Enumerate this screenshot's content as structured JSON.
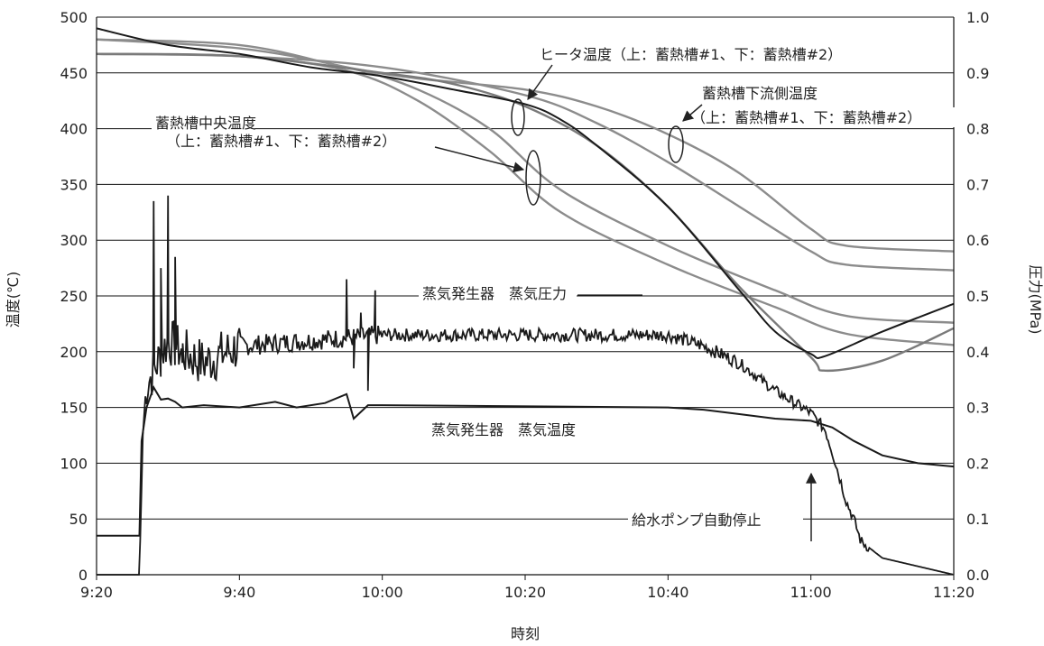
{
  "chart_data": {
    "type": "line",
    "xlabel": "時刻",
    "ylabel_left": "温度(℃)",
    "ylabel_right": "圧力(MPa)",
    "x_range": [
      "9:20",
      "11:20"
    ],
    "x_ticks": [
      "9:20",
      "9:40",
      "10:00",
      "10:20",
      "10:40",
      "11:00",
      "11:20"
    ],
    "ylim_left": [
      0,
      500
    ],
    "y_ticks_left": [
      "0",
      "50",
      "100",
      "150",
      "200",
      "250",
      "300",
      "350",
      "400",
      "450",
      "500"
    ],
    "ylim_right": [
      0.0,
      1.0
    ],
    "y_ticks_right": [
      "0.0",
      "0.1",
      "0.2",
      "0.3",
      "0.4",
      "0.5",
      "0.6",
      "0.7",
      "0.8",
      "0.9",
      "1.0"
    ],
    "grid": "horizontal",
    "legend": "none",
    "annotations": {
      "heater": "ヒータ温度（上：蓄熱槽#1、下：蓄熱槽#2）",
      "center_line1": "蓄熱槽中央温度",
      "center_line2": "（上：蓄熱槽#1、下：蓄熱槽#2）",
      "down_line1": "蓄熱槽下流側温度",
      "down_line2": "（上：蓄熱槽#1、下：蓄熱槽#2）",
      "sg_pressure": "蒸気発生器　蒸気圧力",
      "sg_temp": "蒸気発生器　蒸気温度",
      "pump_stop": "給水ポンプ自動停止"
    },
    "series": [
      {
        "axis": "left",
        "color": "#8c8c8c",
        "points": [
          [
            "9:20",
            480
          ],
          [
            "9:40",
            475
          ],
          [
            "9:55",
            455
          ],
          [
            "10:05",
            445
          ],
          [
            "10:20",
            435
          ],
          [
            "10:30",
            420
          ],
          [
            "10:40",
            395
          ],
          [
            "10:50",
            360
          ],
          [
            "11:00",
            310
          ],
          [
            "11:05",
            295
          ],
          [
            "11:20",
            290
          ]
        ]
      },
      {
        "axis": "left",
        "color": "#8c8c8c",
        "points": [
          [
            "9:20",
            467
          ],
          [
            "9:40",
            465
          ],
          [
            "10:00",
            455
          ],
          [
            "10:20",
            430
          ],
          [
            "10:30",
            405
          ],
          [
            "10:40",
            370
          ],
          [
            "10:50",
            330
          ],
          [
            "11:00",
            290
          ],
          [
            "11:05",
            278
          ],
          [
            "11:20",
            273
          ]
        ]
      },
      {
        "axis": "left",
        "color": "#8c8c8c",
        "points": [
          [
            "9:20",
            480
          ],
          [
            "9:40",
            472
          ],
          [
            "9:55",
            455
          ],
          [
            "10:05",
            435
          ],
          [
            "10:15",
            400
          ],
          [
            "10:25",
            345
          ],
          [
            "10:40",
            295
          ],
          [
            "10:55",
            255
          ],
          [
            "11:05",
            232
          ],
          [
            "11:20",
            226
          ]
        ]
      },
      {
        "axis": "left",
        "color": "#8c8c8c",
        "points": [
          [
            "9:20",
            467
          ],
          [
            "9:40",
            465
          ],
          [
            "9:55",
            452
          ],
          [
            "10:05",
            425
          ],
          [
            "10:15",
            380
          ],
          [
            "10:25",
            325
          ],
          [
            "10:40",
            278
          ],
          [
            "10:55",
            240
          ],
          [
            "11:05",
            216
          ],
          [
            "11:20",
            206
          ]
        ]
      },
      {
        "axis": "left",
        "color": "#7a7a7a",
        "points": [
          [
            "9:20",
            467
          ],
          [
            "9:40",
            465
          ],
          [
            "10:00",
            450
          ],
          [
            "10:10",
            440
          ],
          [
            "10:20",
            420
          ],
          [
            "10:30",
            385
          ],
          [
            "10:40",
            330
          ],
          [
            "10:50",
            258
          ],
          [
            "11:00",
            195
          ],
          [
            "11:02",
            183
          ],
          [
            "11:10",
            192
          ],
          [
            "11:20",
            221
          ]
        ]
      },
      {
        "axis": "left",
        "color": "#1a1a1a",
        "points": [
          [
            "9:20",
            490
          ],
          [
            "9:30",
            475
          ],
          [
            "9:40",
            467
          ],
          [
            "9:50",
            455
          ],
          [
            "10:00",
            447
          ],
          [
            "10:10",
            435
          ],
          [
            "10:20",
            422
          ],
          [
            "10:25",
            408
          ],
          [
            "10:30",
            385
          ],
          [
            "10:40",
            330
          ],
          [
            "10:50",
            255
          ],
          [
            "10:55",
            218
          ],
          [
            "11:00",
            198
          ],
          [
            "11:02",
            196
          ],
          [
            "11:10",
            218
          ],
          [
            "11:20",
            243
          ]
        ]
      },
      {
        "axis": "left",
        "color": "#1a1a1a",
        "points": [
          [
            "9:20",
            35
          ],
          [
            "9:26",
            35
          ],
          [
            "9:26.3",
            120
          ],
          [
            "9:27",
            150
          ],
          [
            "9:28",
            168
          ],
          [
            "9:29",
            157
          ],
          [
            "9:30",
            158
          ],
          [
            "9:31",
            155
          ],
          [
            "9:32",
            150
          ],
          [
            "9:35",
            152
          ],
          [
            "9:40",
            150
          ],
          [
            "9:45",
            155
          ],
          [
            "9:48",
            150
          ],
          [
            "9:52",
            154
          ],
          [
            "9:55",
            162
          ],
          [
            "9:56",
            140
          ],
          [
            "9:58",
            152
          ],
          [
            "10:00",
            152
          ],
          [
            "10:40",
            150
          ],
          [
            "10:45",
            148
          ],
          [
            "10:50",
            144
          ],
          [
            "10:55",
            140
          ],
          [
            "11:00",
            138
          ],
          [
            "11:03",
            132
          ],
          [
            "11:06",
            120
          ],
          [
            "11:10",
            107
          ],
          [
            "11:15",
            100
          ],
          [
            "11:20",
            97
          ]
        ]
      }
    ],
    "pressure_series": {
      "axis": "right",
      "color": "#1a1a1a",
      "anchors": [
        [
          "9:20",
          0.0
        ],
        [
          "9:26",
          0.0
        ],
        [
          "9:26.5",
          0.26
        ],
        [
          "9:27",
          0.34
        ],
        [
          "9:30",
          0.42
        ],
        [
          "9:32",
          0.4
        ],
        [
          "9:35",
          0.38
        ],
        [
          "9:40",
          0.41
        ],
        [
          "10:00",
          0.43
        ],
        [
          "10:40",
          0.43
        ],
        [
          "10:45",
          0.41
        ],
        [
          "10:50",
          0.38
        ],
        [
          "10:55",
          0.33
        ],
        [
          "11:00",
          0.29
        ],
        [
          "11:02",
          0.26
        ],
        [
          "11:03",
          0.22
        ],
        [
          "11:05",
          0.13
        ],
        [
          "11:06",
          0.1
        ],
        [
          "11:07",
          0.06
        ],
        [
          "11:10",
          0.03
        ],
        [
          "11:20",
          0.0
        ]
      ],
      "spikes": [
        [
          "9:28",
          0.67
        ],
        [
          "9:29",
          0.55
        ],
        [
          "9:30",
          0.68
        ],
        [
          "9:31",
          0.57
        ],
        [
          "9:32",
          0.38
        ],
        [
          "9:55",
          0.53
        ],
        [
          "9:56",
          0.37
        ],
        [
          "9:57",
          0.47
        ],
        [
          "9:58",
          0.33
        ],
        [
          "9:59",
          0.51
        ]
      ]
    }
  }
}
